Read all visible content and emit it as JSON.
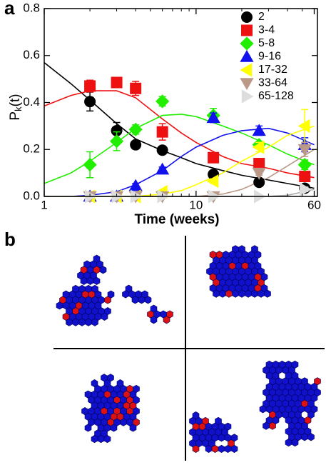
{
  "panel_a": "a",
  "panel_b": "b",
  "chart_data": {
    "type": "scatter",
    "xlabel": "Time (weeks)",
    "ylabel": [
      "P",
      "k",
      "(t)"
    ],
    "xscale": "log",
    "xlim": [
      1,
      63
    ],
    "ylim": [
      0,
      0.8
    ],
    "xticks": [
      1,
      10,
      60
    ],
    "yticks": [
      {
        "value": 0,
        "label": "0.0"
      },
      0.2,
      0.4,
      0.6,
      0.8
    ],
    "legend": "upper right",
    "x": [
      2,
      3,
      4,
      6,
      13,
      26,
      52
    ],
    "curve_x": [
      1,
      1.5,
      2,
      3,
      4,
      6,
      8,
      10,
      15,
      20,
      30,
      40,
      60
    ],
    "series": [
      {
        "name": "2",
        "color": "#000000",
        "marker": "circle",
        "values": [
          0.404,
          0.28,
          0.22,
          0.197,
          0.094,
          0.06,
          0.035
        ],
        "errors": [
          0.04,
          0.035,
          0.01,
          0.01,
          0.01,
          0.01,
          0.005
        ],
        "curve": [
          0.57,
          0.48,
          0.41,
          0.31,
          0.245,
          0.195,
          0.165,
          0.14,
          0.11,
          0.09,
          0.07,
          0.055,
          0.035
        ]
      },
      {
        "name": "3-4",
        "color": "#ee1111",
        "marker": "square",
        "values": [
          0.47,
          0.485,
          0.46,
          0.275,
          0.165,
          0.14,
          0.085
        ],
        "errors": [
          0.025,
          0.01,
          0.03,
          0.035,
          0.01,
          0.01,
          0.02
        ],
        "curve": [
          0.385,
          0.43,
          0.45,
          0.45,
          0.42,
          0.33,
          0.27,
          0.23,
          0.17,
          0.14,
          0.12,
          0.1,
          0.08
        ]
      },
      {
        "name": "5-8",
        "color": "#22ee00",
        "marker": "diamond",
        "values": [
          0.135,
          0.235,
          0.285,
          0.405,
          0.345,
          0.22,
          0.135
        ],
        "errors": [
          0.055,
          0.04,
          0.02,
          0.02,
          0.03,
          0.01,
          0.02
        ],
        "curve": [
          0.055,
          0.1,
          0.15,
          0.23,
          0.29,
          0.345,
          0.35,
          0.34,
          0.3,
          0.27,
          0.22,
          0.18,
          0.135
        ]
      },
      {
        "name": "9-16",
        "color": "#1111ee",
        "marker": "triangle-up",
        "values": [
          0,
          0,
          0.045,
          0.115,
          0.335,
          0.28,
          0.22
        ],
        "errors": [
          0,
          0,
          0.01,
          0.01,
          0.02,
          0.02,
          0.03
        ],
        "curve": [
          0,
          0,
          0.005,
          0.02,
          0.05,
          0.11,
          0.17,
          0.21,
          0.26,
          0.28,
          0.29,
          0.27,
          0.22
        ]
      },
      {
        "name": "17-32",
        "color": "#ffff00",
        "marker": "triangle-left",
        "values": [
          0,
          0,
          0,
          0.02,
          0.065,
          0.21,
          0.3
        ],
        "errors": [
          0,
          0,
          0,
          0.005,
          0.01,
          0.02,
          0.07
        ],
        "curve": [
          0,
          0,
          0,
          0,
          0,
          0.01,
          0.025,
          0.05,
          0.1,
          0.15,
          0.21,
          0.26,
          0.3
        ]
      },
      {
        "name": "33-64",
        "color": "#bb9988",
        "marker": "triangle-down",
        "values": [
          0,
          0,
          0,
          0,
          0,
          0.1,
          0.2
        ],
        "errors": [
          0,
          0,
          0,
          0,
          0,
          0.01,
          0.03
        ],
        "curve": [
          0,
          0,
          0,
          0,
          0,
          0,
          0,
          0,
          0.01,
          0.03,
          0.08,
          0.13,
          0.2
        ]
      },
      {
        "name": "65-128",
        "color": "#dddddd",
        "marker": "triangle-right",
        "values": [
          0,
          0,
          0,
          0,
          0,
          0,
          0.03
        ],
        "errors": [
          0,
          0,
          0,
          0,
          0,
          0,
          0.01
        ],
        "curve": [
          0,
          0,
          0,
          0,
          0,
          0,
          0,
          0,
          0,
          0,
          0,
          0.005,
          0.03
        ]
      }
    ]
  }
}
